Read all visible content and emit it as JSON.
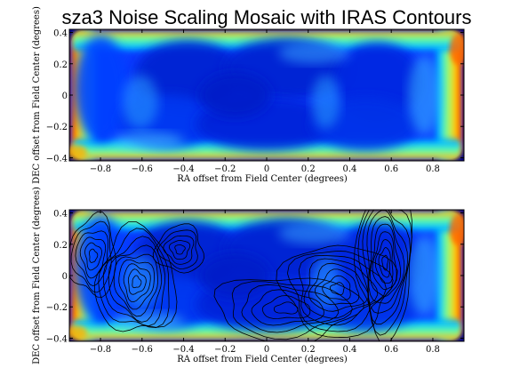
{
  "chart_data": {
    "title": "sza3 Noise Scaling Mosaic with IRAS Contours",
    "panels": [
      {
        "type": "heatmap",
        "xlabel": "RA offset from Field Center (degrees)",
        "ylabel": "DEC offset from Field Center (degrees)",
        "xlim": [
          -0.95,
          0.95
        ],
        "ylim": [
          -0.42,
          0.42
        ],
        "xticks": [
          -0.8,
          -0.6,
          -0.4,
          -0.2,
          0,
          0.2,
          0.4,
          0.6,
          0.8
        ],
        "xtick_labels": [
          "−0.8",
          "−0.6",
          "−0.4",
          "−0.2",
          "0",
          "0.2",
          "0.4",
          "0.6",
          "0.8"
        ],
        "yticks": [
          0.4,
          0.2,
          0,
          -0.2,
          -0.4
        ],
        "ytick_labels": [
          "0.4",
          "0.2",
          "0",
          "−0.2",
          "−0.4"
        ],
        "colormap": "jet",
        "contours": false
      },
      {
        "type": "heatmap",
        "xlabel": "RA offset from Field Center (degrees)",
        "ylabel": "DEC offset from Field Center (degrees)",
        "xlim": [
          -0.95,
          0.95
        ],
        "ylim": [
          -0.42,
          0.42
        ],
        "xticks": [
          -0.8,
          -0.6,
          -0.4,
          -0.2,
          0,
          0.2,
          0.4,
          0.6,
          0.8
        ],
        "xtick_labels": [
          "−0.8",
          "−0.6",
          "−0.4",
          "−0.2",
          "0",
          "0.2",
          "0.4",
          "0.6",
          "0.8"
        ],
        "yticks": [
          0.4,
          0.2,
          0,
          -0.2,
          -0.4
        ],
        "ytick_labels": [
          "0.4",
          "0.2",
          "0",
          "−0.2",
          "−0.4"
        ],
        "colormap": "jet",
        "contours": true
      }
    ]
  }
}
